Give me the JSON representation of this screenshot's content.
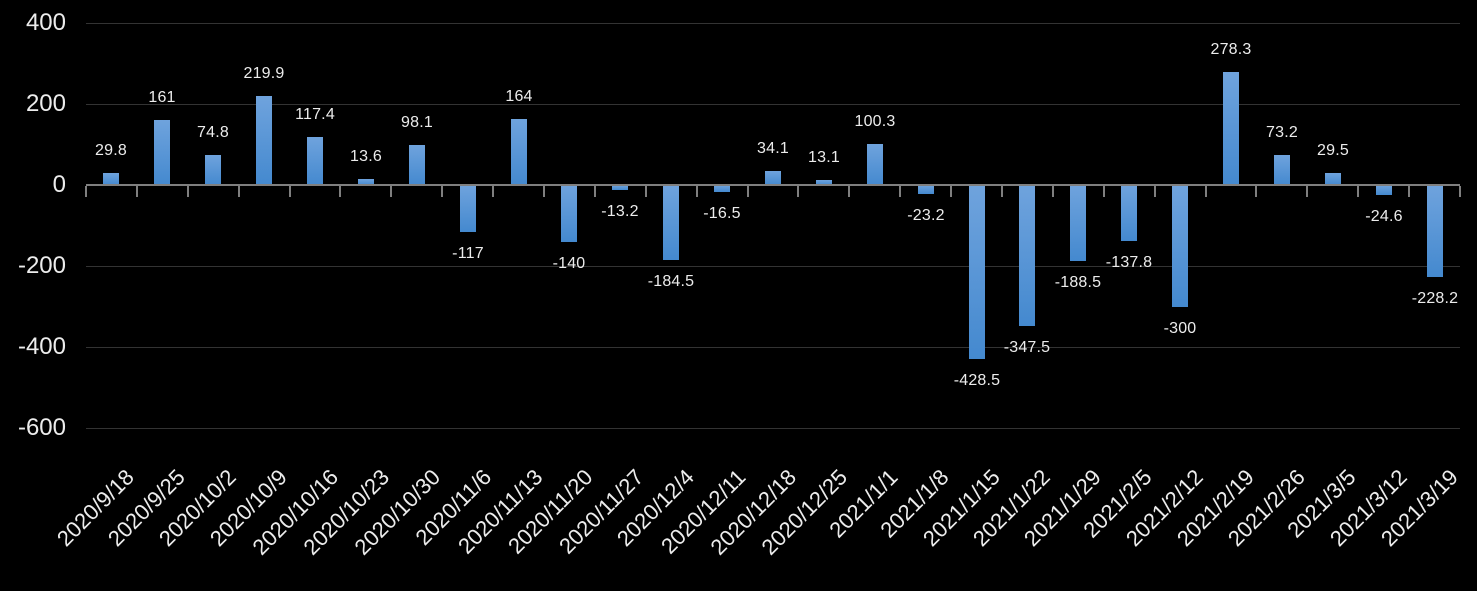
{
  "chart_data": {
    "type": "bar",
    "title": "",
    "xlabel": "",
    "ylabel": "",
    "categories": [
      "2020/9/18",
      "2020/9/25",
      "2020/10/2",
      "2020/10/9",
      "2020/10/16",
      "2020/10/23",
      "2020/10/30",
      "2020/11/6",
      "2020/11/13",
      "2020/11/20",
      "2020/11/27",
      "2020/12/4",
      "2020/12/11",
      "2020/12/18",
      "2020/12/25",
      "2021/1/1",
      "2021/1/8",
      "2021/1/15",
      "2021/1/22",
      "2021/1/29",
      "2021/2/5",
      "2021/2/12",
      "2021/2/19",
      "2021/2/26",
      "2021/3/5",
      "2021/3/12",
      "2021/3/19"
    ],
    "values": [
      29.8,
      161,
      74.8,
      219.9,
      117.4,
      13.6,
      98.1,
      -117,
      164,
      -140,
      -13.2,
      -184.5,
      -16.5,
      34.1,
      13.1,
      100.3,
      -23.2,
      -428.5,
      -347.5,
      -188.5,
      -137.8,
      -300,
      278.3,
      73.2,
      29.5,
      -24.6,
      -228.2
    ],
    "data_labels": [
      "29.8",
      "161",
      "74.8",
      "219.9",
      "117.4",
      "13.6",
      "98.1",
      "-117",
      "164",
      "-140",
      "-13.2",
      "-184.5",
      "-16.5",
      "34.1",
      "13.1",
      "100.3",
      "-23.2",
      "-428.5",
      "-347.5",
      "-188.5",
      "-137.8",
      "-300",
      "278.3",
      "73.2",
      "29.5",
      "-24.6",
      "-228.2"
    ],
    "data_label_position": "outside-end",
    "yticks": [
      400,
      200,
      0,
      -200,
      -400,
      -600
    ],
    "ylim": [
      -600,
      400
    ],
    "grid": true,
    "legend": "none",
    "colors": {
      "background": "#000000",
      "bar_gradient_top": "#6FA3DD",
      "bar_gradient_bottom": "#4489CF",
      "text": "#ECECEC",
      "gridline": "#333333",
      "axis": "#7F7F7F"
    }
  }
}
